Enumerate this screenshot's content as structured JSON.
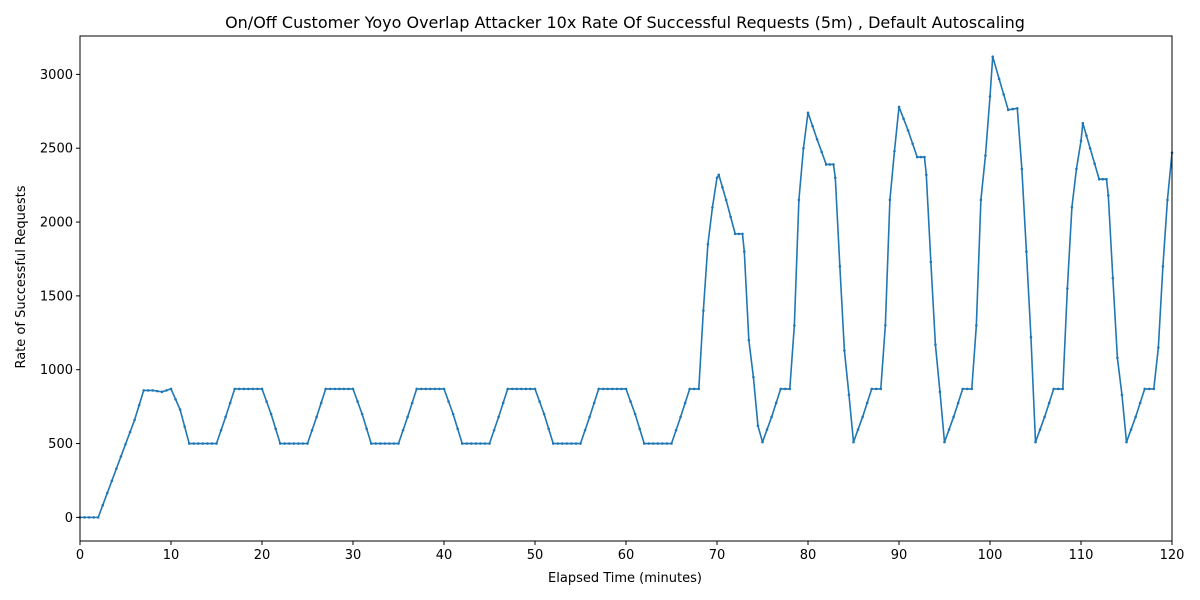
{
  "chart_data": {
    "type": "line",
    "title": "On/Off Customer Yoyo Overlap Attacker 10x Rate Of Successful Requests (5m) , Default Autoscaling",
    "xlabel": "Elapsed Time (minutes)",
    "ylabel": "Rate of Successful Requests",
    "xlim": [
      0,
      120
    ],
    "ylim": [
      -160,
      3260
    ],
    "xticks": [
      0,
      10,
      20,
      30,
      40,
      50,
      60,
      70,
      80,
      90,
      100,
      110,
      120
    ],
    "yticks": [
      0,
      500,
      1000,
      1500,
      2000,
      2500,
      3000
    ],
    "grid": false,
    "marker": "dot",
    "series": [
      {
        "color": "#1f77b4",
        "x": [
          0,
          2,
          4,
          6,
          7,
          8,
          9,
          10,
          11,
          12,
          15,
          16,
          17,
          20,
          21,
          22,
          25,
          26,
          27,
          30,
          31,
          32,
          35,
          36,
          37,
          40,
          41,
          42,
          45,
          46,
          47,
          50,
          51,
          52,
          55,
          56,
          57,
          60,
          61,
          62,
          65,
          66,
          67,
          68,
          68.5,
          69,
          69.5,
          70,
          70.2,
          71,
          72,
          72.8,
          73,
          73.5,
          74,
          74.5,
          75,
          76,
          77,
          78,
          78.5,
          79,
          79.5,
          80,
          81,
          82,
          82.8,
          83,
          83.5,
          84,
          84.5,
          85,
          86,
          87,
          88,
          88.5,
          89,
          89.5,
          90,
          91,
          92,
          92.8,
          93,
          93.5,
          94,
          94.5,
          95,
          96,
          97,
          98,
          98.5,
          99,
          99.5,
          100,
          100.3,
          101,
          102,
          103,
          103.5,
          104,
          104.5,
          105,
          106,
          107,
          108,
          108.5,
          109,
          109.5,
          110,
          110.2,
          111,
          112,
          112.8,
          113,
          113.5,
          114,
          114.5,
          115,
          116,
          117,
          118,
          118.5,
          119,
          119.5,
          120
        ],
        "y": [
          0,
          0,
          330,
          660,
          860,
          860,
          850,
          870,
          730,
          500,
          500,
          680,
          870,
          870,
          700,
          500,
          500,
          680,
          870,
          870,
          700,
          500,
          500,
          680,
          870,
          870,
          700,
          500,
          500,
          680,
          870,
          870,
          700,
          500,
          500,
          680,
          870,
          870,
          700,
          500,
          500,
          680,
          870,
          870,
          1400,
          1850,
          2100,
          2300,
          2320,
          2150,
          1920,
          1920,
          1800,
          1200,
          950,
          620,
          510,
          680,
          870,
          870,
          1300,
          2150,
          2500,
          2740,
          2560,
          2390,
          2390,
          2300,
          1700,
          1130,
          830,
          510,
          680,
          870,
          870,
          1300,
          2150,
          2480,
          2780,
          2620,
          2440,
          2440,
          2320,
          1730,
          1170,
          850,
          510,
          680,
          870,
          870,
          1300,
          2150,
          2450,
          2850,
          3120,
          2970,
          2760,
          2770,
          2360,
          1800,
          1220,
          510,
          680,
          870,
          870,
          1550,
          2100,
          2360,
          2550,
          2670,
          2500,
          2290,
          2290,
          2180,
          1620,
          1080,
          830,
          510,
          680,
          870,
          870,
          1150,
          1700,
          2150,
          2470
        ]
      }
    ]
  }
}
